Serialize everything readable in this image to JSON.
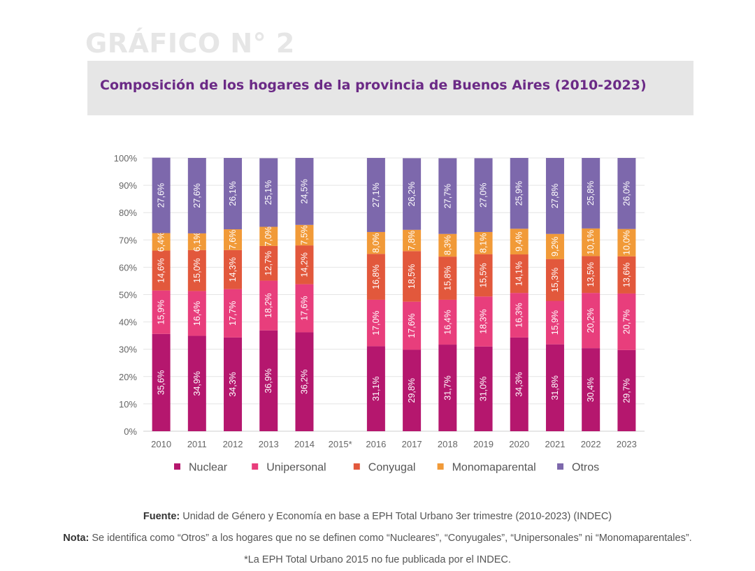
{
  "header": {
    "heading": "GRÁFICO N° 2",
    "title": "Composición de los hogares de la provincia de Buenos Aires (2010-2023)"
  },
  "chart_data": {
    "type": "bar",
    "stacked": true,
    "categories": [
      "2010",
      "2011",
      "2012",
      "2013",
      "2014",
      "2015*",
      "2016",
      "2017",
      "2018",
      "2019",
      "2020",
      "2021",
      "2022",
      "2023"
    ],
    "y_ticks": [
      "0%",
      "10%",
      "20%",
      "30%",
      "40%",
      "50%",
      "60%",
      "70%",
      "80%",
      "90%",
      "100%"
    ],
    "ylim": [
      0,
      100
    ],
    "legend_position": "bottom",
    "series": [
      {
        "name": "Nuclear",
        "color": "#b5176e",
        "values": [
          35.6,
          34.9,
          34.3,
          36.9,
          36.2,
          null,
          31.1,
          29.8,
          31.7,
          31.0,
          34.3,
          31.8,
          30.4,
          29.7
        ],
        "labels": [
          "35,6%",
          "34,9%",
          "34,3%",
          "36,9%",
          "36,2%",
          "",
          "31,1%",
          "29,8%",
          "31,7%",
          "31,0%",
          "34,3%",
          "31,8%",
          "30,4%",
          "29,7%"
        ]
      },
      {
        "name": "Unipersonal",
        "color": "#e83e7c",
        "values": [
          15.9,
          16.4,
          17.7,
          18.2,
          17.6,
          null,
          17.0,
          17.6,
          16.4,
          18.3,
          16.3,
          15.9,
          20.2,
          20.7
        ],
        "labels": [
          "15,9%",
          "16,4%",
          "17,7%",
          "18,2%",
          "17,6%",
          "",
          "17,0%",
          "17,6%",
          "16,4%",
          "18,3%",
          "16,3%",
          "15,9%",
          "20,2%",
          "20,7%"
        ]
      },
      {
        "name": "Conyugal",
        "color": "#e2583c",
        "values": [
          14.6,
          15.0,
          14.3,
          12.7,
          14.2,
          null,
          16.8,
          18.5,
          15.8,
          15.5,
          14.1,
          15.3,
          13.5,
          13.6
        ],
        "labels": [
          "14,6%",
          "15,0%",
          "14,3%",
          "12,7%",
          "14,2%",
          "",
          "16,8%",
          "18,5%",
          "15,8%",
          "15,5%",
          "14,1%",
          "15,3%",
          "13,5%",
          "13,6%"
        ]
      },
      {
        "name": "Monomaparental",
        "color": "#f19a38",
        "values": [
          6.4,
          6.1,
          7.6,
          7.0,
          7.5,
          null,
          8.0,
          7.8,
          8.3,
          8.1,
          9.4,
          9.2,
          10.1,
          10.0
        ],
        "labels": [
          "6,4%",
          "6,1%",
          "7,6%",
          "7,0%",
          "7,5%",
          "",
          "8,0%",
          "7,8%",
          "8,3%",
          "8,1%",
          "9,4%",
          "9,2%",
          "10,1%",
          "10,0%"
        ]
      },
      {
        "name": "Otros",
        "color": "#7d68ac",
        "values": [
          27.6,
          27.6,
          26.1,
          25.1,
          24.5,
          null,
          27.1,
          26.2,
          27.7,
          27.0,
          25.9,
          27.8,
          25.8,
          26.0
        ],
        "labels": [
          "27,6%",
          "27,6%",
          "26,1%",
          "25,1%",
          "24,5%",
          "",
          "27,1%",
          "26,2%",
          "27,7%",
          "27,0%",
          "25,9%",
          "27,8%",
          "25,8%",
          "26,0%"
        ]
      }
    ]
  },
  "footer": {
    "source_label": "Fuente:",
    "source_text": "Unidad de Género y Economía en base a EPH Total Urbano 3er trimestre (2010-2023) (INDEC)",
    "note_label": "Nota:",
    "note_text": "Se identifica como “Otros” a los hogares que no se definen como “Nucleares”, “Conyugales”, “Unipersonales” ni “Monomaparentales”.",
    "footnote": "*La EPH Total Urbano 2015 no fue publicada por el INDEC."
  }
}
